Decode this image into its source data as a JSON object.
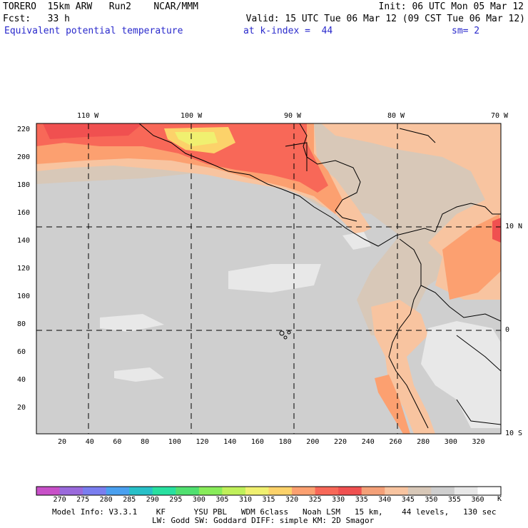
{
  "header": {
    "model": "TORERO  15km ARW   Run2    NCAR/MMM",
    "init": "Init: 06 UTC Mon 05 Mar 12",
    "fcst": "Fcst:   33 h",
    "valid": "Valid: 15 UTC Tue 06 Mar 12 (09 CST Tue 06 Mar 12)",
    "field": "Equivalent potential temperature",
    "level": "at k-index =  44",
    "smooth": "sm= 2"
  },
  "map": {
    "lon_labels": [
      "110 W",
      "100 W",
      "90 W",
      "80 W",
      "70 W"
    ],
    "lat_labels": [
      "10 N",
      "0",
      "10 S"
    ],
    "y_ticks": [
      "20",
      "40",
      "60",
      "80",
      "100",
      "120",
      "140",
      "160",
      "180",
      "200",
      "220"
    ],
    "x_ticks": [
      "20",
      "40",
      "60",
      "80",
      "100",
      "120",
      "140",
      "160",
      "180",
      "200",
      "220",
      "240",
      "260",
      "280",
      "300",
      "320"
    ]
  },
  "colorbar": {
    "unit": "K",
    "labels": [
      "270",
      "275",
      "280",
      "285",
      "290",
      "295",
      "300",
      "305",
      "310",
      "315",
      "320",
      "325",
      "330",
      "335",
      "340",
      "345",
      "350",
      "355",
      "360"
    ],
    "colors": [
      "#c850c8",
      "#9a6adc",
      "#7a7ef0",
      "#4aa0f0",
      "#28c0c8",
      "#28e0a0",
      "#50e070",
      "#88ec5a",
      "#c0f05a",
      "#f0f070",
      "#fcd26a",
      "#fca070",
      "#f86858",
      "#f05050",
      "#f4a078",
      "#f8c4a0",
      "#d8c8b8",
      "#cfcfcf",
      "#e8e8e8",
      "#ffffff"
    ]
  },
  "footer": {
    "line1": "Model Info: V3.3.1    KF      YSU PBL   WDM 6class   Noah LSM   15 km,    44 levels,   130 sec",
    "line2": "LW: Godd SW: Goddard DIFF: simple KM: 2D Smagor"
  }
}
